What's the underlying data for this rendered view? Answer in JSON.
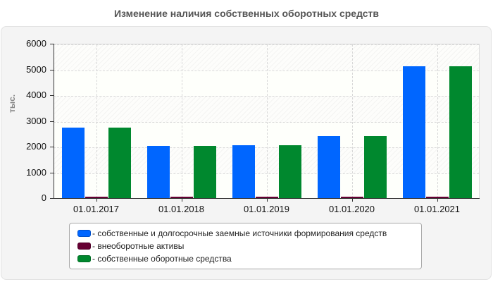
{
  "chart_data": {
    "type": "bar",
    "title": "Изменение наличия собственных оборотных средств",
    "xlabel": "",
    "ylabel": "тыс.",
    "ylim": [
      0,
      6000
    ],
    "yticks": [
      0,
      1000,
      2000,
      3000,
      4000,
      5000,
      6000
    ],
    "grid": true,
    "legend_position": "bottom",
    "categories": [
      "01.01.2017",
      "01.01.2018",
      "01.01.2019",
      "01.01.2020",
      "01.01.2021"
    ],
    "series": [
      {
        "name": "собственные и долгосрочные заемные источники формирования средств",
        "color": "#0066ff",
        "values": [
          2740,
          2030,
          2060,
          2410,
          5120
        ]
      },
      {
        "name": "внеоборотные активы",
        "color": "#660033",
        "values": [
          30,
          30,
          30,
          30,
          30
        ]
      },
      {
        "name": "собственные оборотные средства",
        "color": "#00882e",
        "values": [
          2740,
          2030,
          2060,
          2410,
          5120
        ]
      }
    ]
  },
  "legend": {
    "items": [
      {
        "label": "- собственные и долгосрочные заемные источники формирования средств"
      },
      {
        "label": "- внеоборотные активы"
      },
      {
        "label": "- собственные оборотные средства"
      }
    ]
  }
}
